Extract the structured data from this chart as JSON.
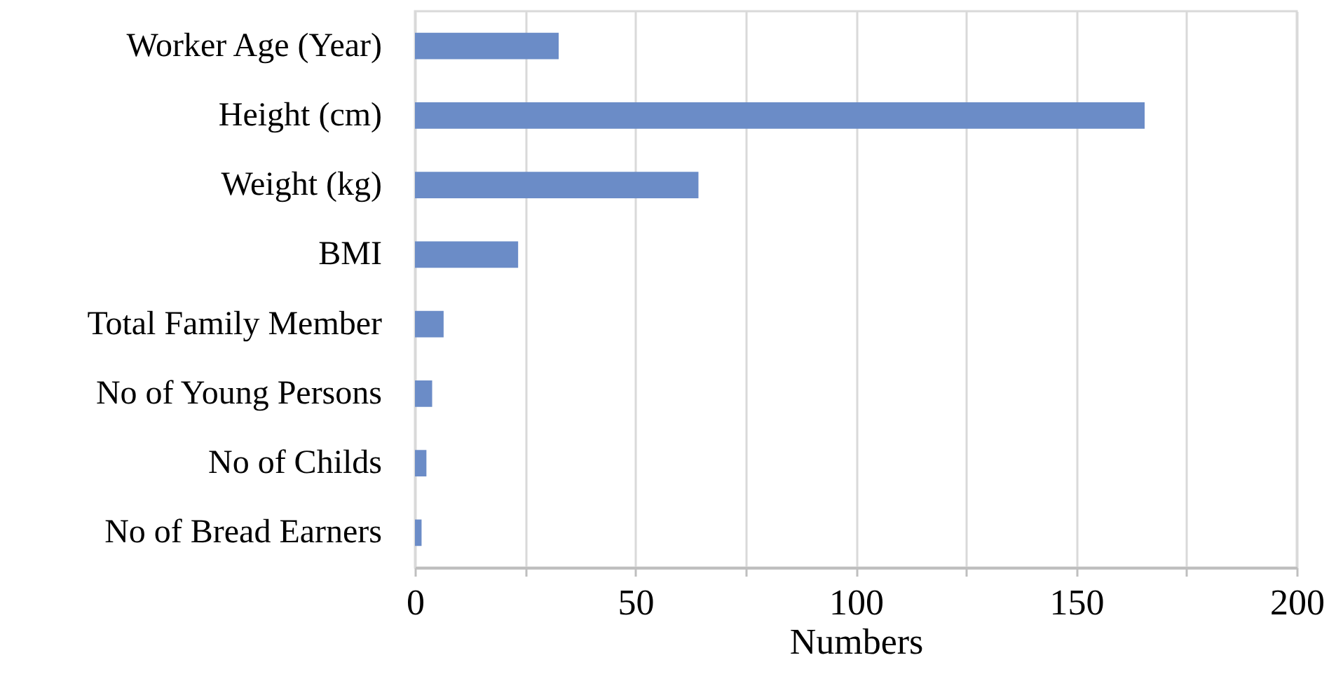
{
  "chart_data": {
    "type": "bar",
    "orientation": "horizontal",
    "xlabel": "Numbers",
    "categories": [
      "Worker Age (Year)",
      "Height (cm)",
      "Weight (kg)",
      "BMI",
      "Total Family Member",
      "No of Young Persons",
      "No of Childs",
      "No of Bread Earners"
    ],
    "values": [
      32.6,
      165.5,
      64.3,
      23.4,
      6.5,
      3.9,
      2.6,
      1.5
    ],
    "color": "#6b8cc7",
    "xlim": [
      0,
      200
    ],
    "xticks": [
      0,
      {
        "value": 25,
        "label": null
      },
      50,
      {
        "value": 75,
        "label": null
      },
      100,
      {
        "value": 125,
        "label": null
      },
      150,
      {
        "value": 175,
        "label": null
      },
      200
    ],
    "grid": "x"
  }
}
